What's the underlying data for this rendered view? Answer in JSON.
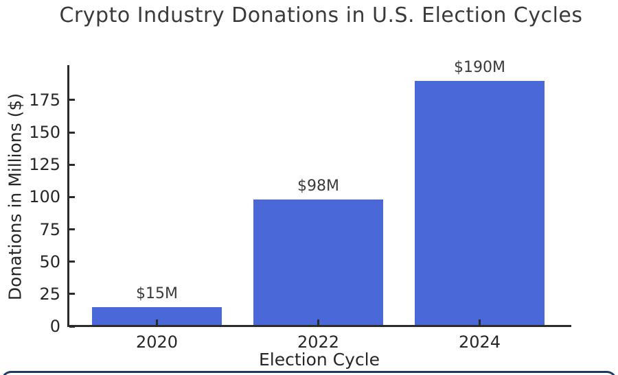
{
  "chart_data": {
    "type": "bar",
    "title": "Crypto Industry Donations in U.S. Election Cycles",
    "xlabel": "Election Cycle",
    "ylabel": "Donations in Millions ($)",
    "categories": [
      "2020",
      "2022",
      "2024"
    ],
    "values": [
      15,
      98,
      190
    ],
    "bar_labels": [
      "$15M",
      "$98M",
      "$190M"
    ],
    "yticks": [
      0,
      25,
      50,
      75,
      100,
      125,
      150,
      175
    ],
    "ylim": [
      0,
      202
    ],
    "grid": false,
    "legend": null,
    "bar_color": "#4a68d8"
  },
  "colors": {
    "bar": "#4a68d8",
    "axis": "#2b2b2b",
    "tick_text": "#262626",
    "title_text": "#3a3a3a",
    "bottom_edge": "#1f3a60"
  }
}
